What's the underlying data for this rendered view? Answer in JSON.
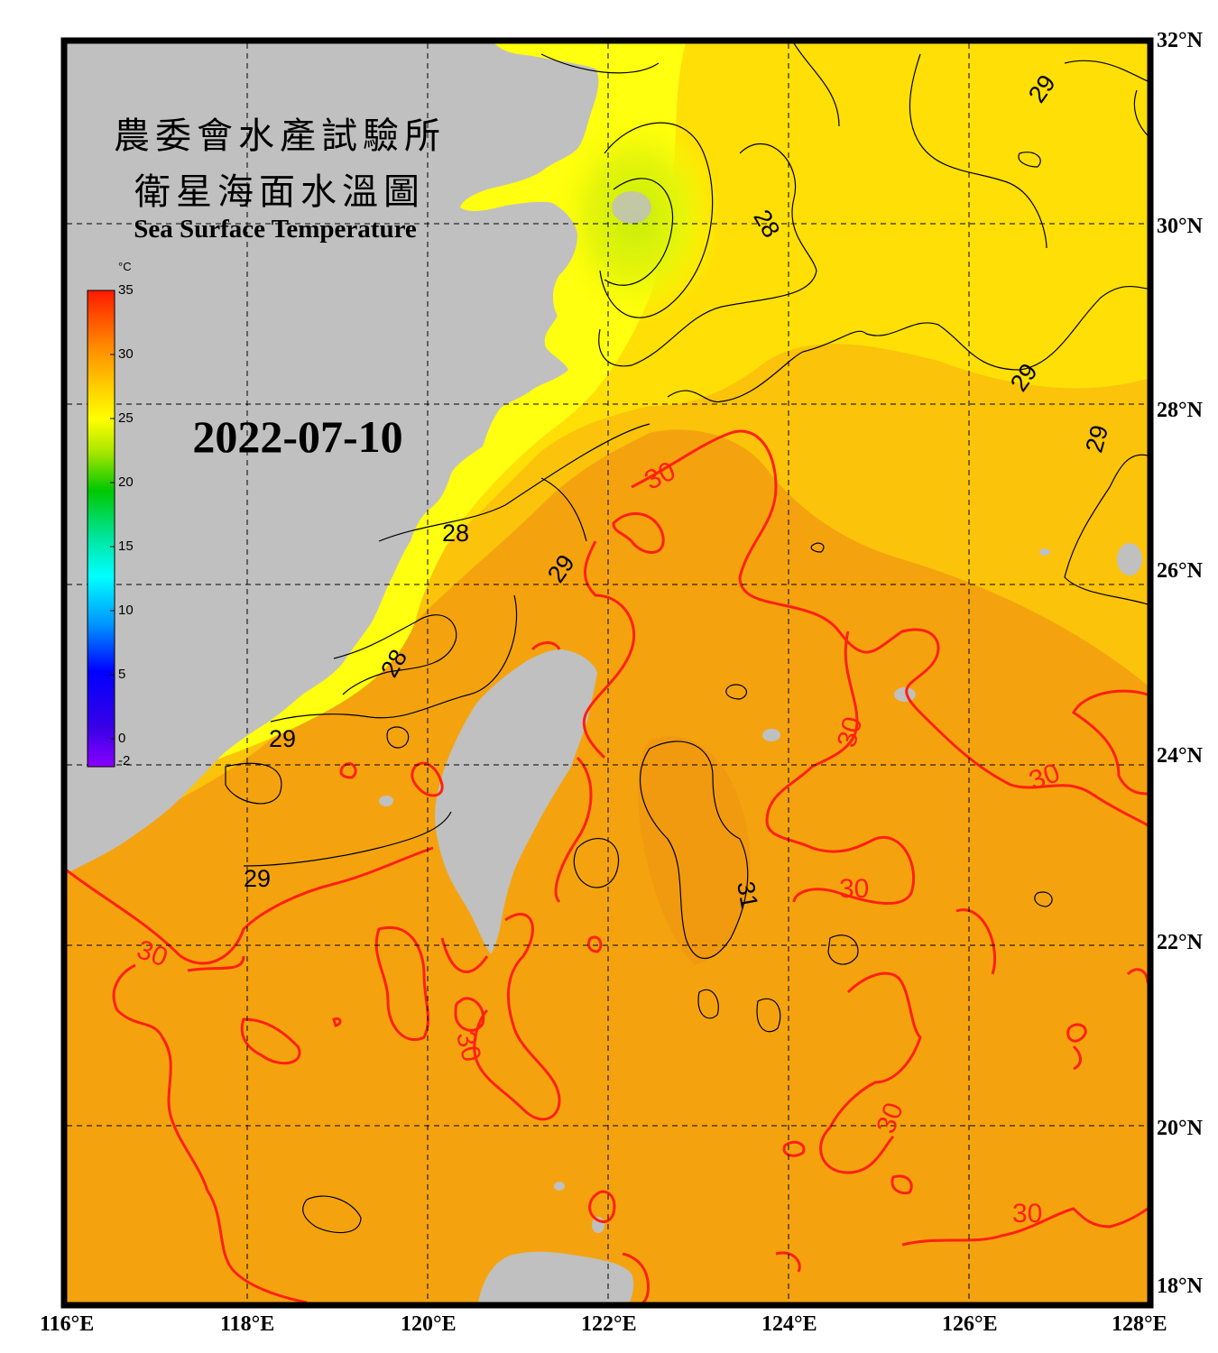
{
  "title_zh_line1": "農委會水產試驗所",
  "title_zh_line2": "衛星海面水溫圖",
  "title_en": "Sea Surface Temperature",
  "date": "2022-07-10",
  "colorbar": {
    "unit": "°C",
    "labels": [
      "35",
      "30",
      "25",
      "20",
      "15",
      "10",
      "5",
      "0",
      "-2"
    ]
  },
  "lat_labels": [
    "32°N",
    "30°N",
    "28°N",
    "26°N",
    "24°N",
    "22°N",
    "20°N",
    "18°N"
  ],
  "lon_labels": [
    "116°E",
    "118°E",
    "120°E",
    "122°E",
    "124°E",
    "126°E",
    "128°E"
  ],
  "contour_labels": {
    "c28": "28",
    "c29": "29",
    "c30": "30",
    "c31": "31"
  },
  "colors": {
    "land": "#c0c0c0",
    "frame": "#000000",
    "contour_30": "#ff2010",
    "contour_other": "#000000",
    "sea_warm": "#f5a40e",
    "sea_mid": "#fbc10a",
    "sea_cool": "#ffff00"
  }
}
